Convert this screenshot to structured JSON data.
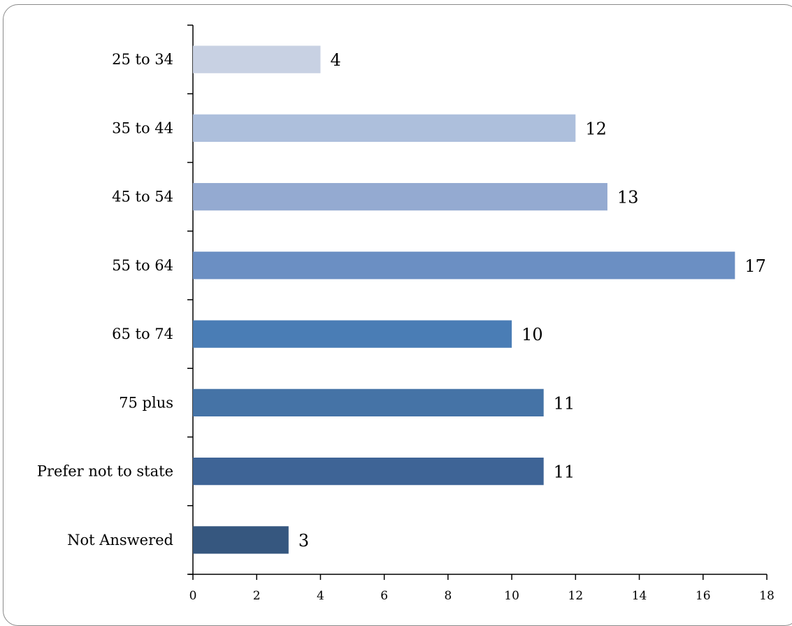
{
  "chart_data": {
    "type": "bar",
    "orientation": "horizontal",
    "title": "",
    "xlabel": "",
    "ylabel": "",
    "categories": [
      "25 to 34",
      "35 to 44",
      "45 to 54",
      "55 to 64",
      "65 to 74",
      "75 plus",
      "Prefer not to state",
      "Not Answered"
    ],
    "values": [
      4,
      12,
      13,
      17,
      10,
      11,
      11,
      3
    ],
    "data_labels": [
      "4",
      "12",
      "13",
      "17",
      "10",
      "11",
      "11",
      "3"
    ],
    "xlim": [
      0,
      18
    ],
    "xticks": [
      0,
      2,
      4,
      6,
      8,
      10,
      12,
      14,
      16,
      18
    ],
    "xtick_labels": [
      "0",
      "2",
      "4",
      "6",
      "8",
      "10",
      "12",
      "14",
      "16",
      "18"
    ],
    "bar_colors": [
      "#c8d1e3",
      "#adbfdc",
      "#94aad1",
      "#6b8fc3",
      "#4a7db5",
      "#4573a6",
      "#3e6496",
      "#36577f"
    ],
    "grid": false,
    "legend": "none"
  }
}
